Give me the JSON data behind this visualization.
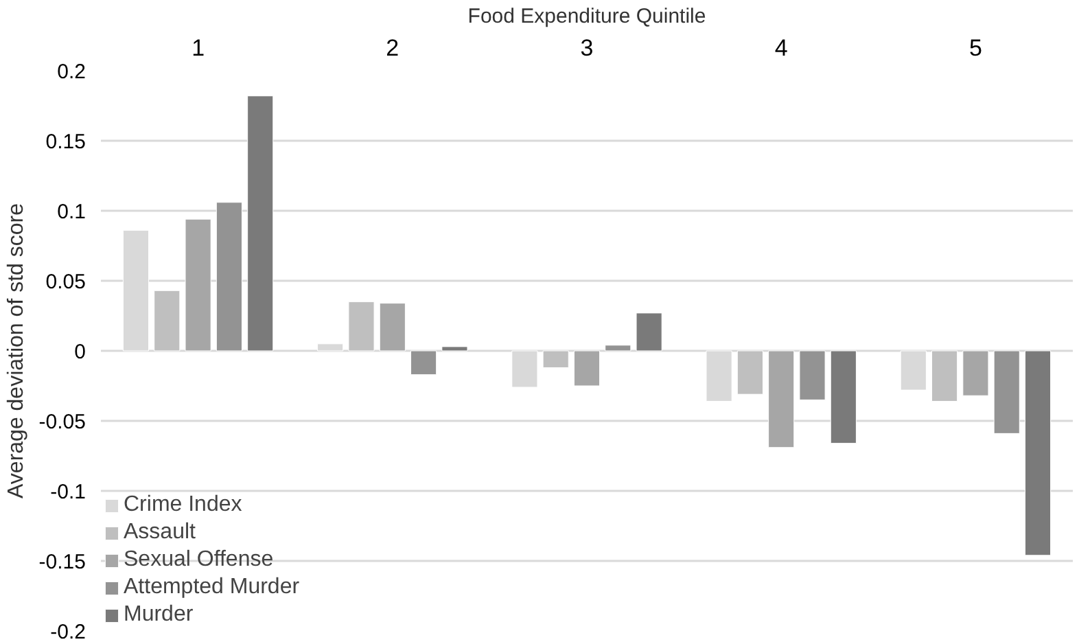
{
  "chart_data": {
    "type": "bar",
    "xlabel": "Food Expenditure Quintile",
    "ylabel": "Average deviation of std score",
    "categories": [
      "1",
      "2",
      "3",
      "4",
      "5"
    ],
    "series": [
      {
        "name": "Crime Index",
        "color": "#d9d9d9",
        "values": [
          0.086,
          0.005,
          -0.026,
          -0.036,
          -0.028
        ]
      },
      {
        "name": "Assault",
        "color": "#bfbfbf",
        "values": [
          0.043,
          0.035,
          -0.012,
          -0.031,
          -0.036
        ]
      },
      {
        "name": "Sexual Offense",
        "color": "#a6a6a6",
        "values": [
          0.094,
          0.034,
          -0.025,
          -0.069,
          -0.032
        ]
      },
      {
        "name": "Attempted Murder",
        "color": "#939393",
        "values": [
          0.106,
          -0.017,
          0.004,
          -0.035,
          -0.059
        ]
      },
      {
        "name": "Murder",
        "color": "#7a7a7a",
        "values": [
          0.182,
          0.003,
          0.027,
          -0.066,
          -0.146
        ]
      }
    ],
    "ylim": [
      -0.2,
      0.2
    ],
    "yticks": [
      -0.2,
      -0.15,
      -0.1,
      -0.05,
      0,
      0.05,
      0.1,
      0.15,
      0.2
    ],
    "grid": "y",
    "legend": "bottom left"
  }
}
